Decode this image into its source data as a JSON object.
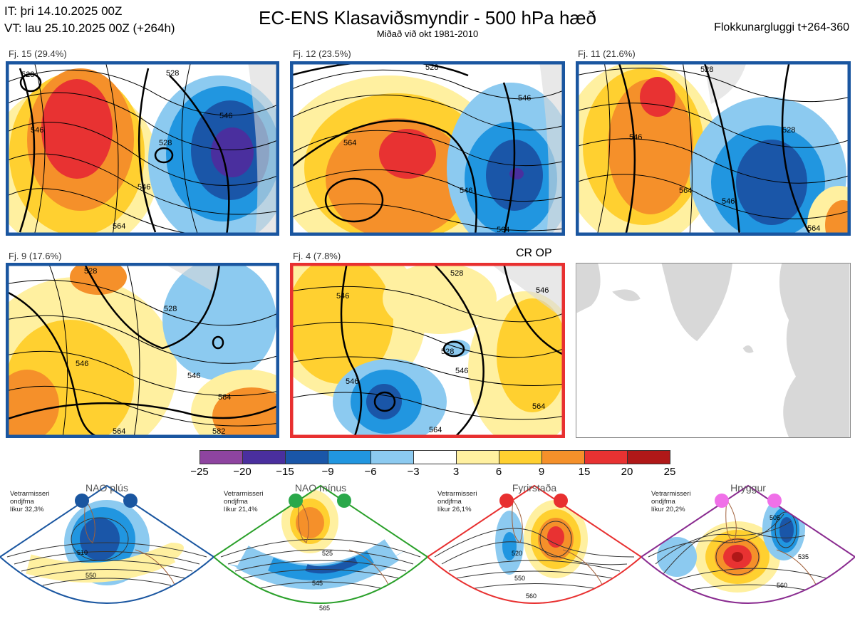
{
  "header": {
    "it_line": "IT: þri 14.10.2025 00Z",
    "vt_line": "VT: lau 25.10.2025 00Z  (+264h)",
    "title": "EC-ENS Klasaviðsmyndir - 500 hPa hæð",
    "subtitle": "Miðað við okt 1981-2010",
    "window": "Flokkunargluggi t+264-360"
  },
  "colors": {
    "blue_border": "#1a56a0",
    "red_border": "#e83030",
    "green_border": "#2aa02a",
    "purple_border": "#8a2c90"
  },
  "clusters": [
    {
      "label": "Fj. 15 (29.4%)",
      "border": "#1a56a0",
      "contours": [
        "528",
        "546",
        "528",
        "546",
        "528",
        "546",
        "564"
      ]
    },
    {
      "label": "Fj. 12 (23.5%)",
      "border": "#1a56a0",
      "contours": [
        "528",
        "546",
        "564",
        "546",
        "564"
      ]
    },
    {
      "label": "Fj. 11 (21.6%)",
      "border": "#1a56a0",
      "contours": [
        "528",
        "546",
        "528",
        "564",
        "546",
        "564"
      ]
    },
    {
      "label": "Fj. 9 (17.6%)",
      "border": "#1a56a0",
      "contours": [
        "528",
        "528",
        "546",
        "546",
        "564",
        "564",
        "582"
      ]
    },
    {
      "label": "Fj. 4 (7.8%)",
      "border": "#e83030",
      "contours": [
        "528",
        "546",
        "546",
        "528",
        "546",
        "546",
        "564",
        "564"
      ]
    }
  ],
  "cr_op": "CR OP",
  "scale": {
    "colors": [
      "#8e44a0",
      "#4a2f9e",
      "#1a56a8",
      "#2196e0",
      "#8ccaf0",
      "#ffffff",
      "#fff0a0",
      "#ffd030",
      "#f5902a",
      "#e83232",
      "#b01818"
    ],
    "ticks": [
      "−25",
      "−20",
      "−15",
      "−9",
      "−6",
      "−3",
      "3",
      "6",
      "9",
      "15",
      "20",
      "25"
    ]
  },
  "regimes": [
    {
      "name": "NAO plús",
      "info": "Vetrarmisseri\nondjfma\nlíkur 32,3%",
      "dot_color": "#1a56a0",
      "border": "#1a56a0",
      "contours": [
        "510",
        "550"
      ]
    },
    {
      "name": "NAO mínus",
      "info": "Vetrarmisseri\nondjfma\nlíkur 21,4%",
      "dot_color": "#2aa84a",
      "border": "#2aa02a",
      "contours": [
        "525",
        "545",
        "565"
      ]
    },
    {
      "name": "Fyrirstaða",
      "info": "Vetrarmisseri\nondjfma\nlíkur 26,1%",
      "dot_color": "#e83030",
      "border": "#e83030",
      "contours": [
        "520",
        "550",
        "560"
      ]
    },
    {
      "name": "Hryggur",
      "info": "Vetrarmisseri\nondjfma\nlíkur 20,2%",
      "dot_color": "#f070e8",
      "border": "#8a2c90",
      "contours": [
        "505",
        "535",
        "560"
      ]
    }
  ]
}
